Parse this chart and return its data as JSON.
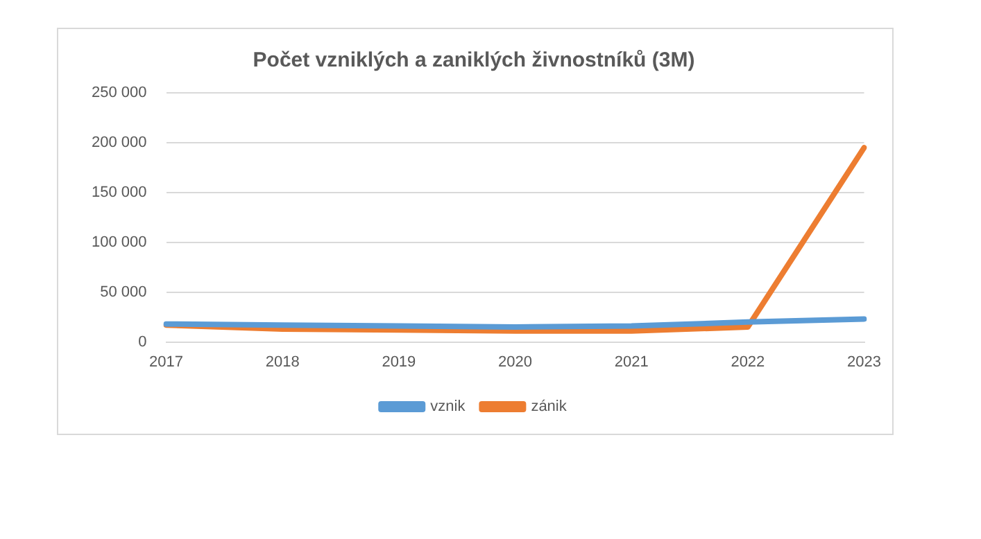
{
  "chart_data": {
    "type": "line",
    "title": "Počet vzniklých a zaniklých živnostníků (3M)",
    "categories": [
      "2017",
      "2018",
      "2019",
      "2020",
      "2021",
      "2022",
      "2023"
    ],
    "series": [
      {
        "name": "vznik",
        "color": "#5b9bd5",
        "values": [
          18000,
          17000,
          16000,
          15000,
          16000,
          20000,
          23000
        ]
      },
      {
        "name": "zánik",
        "color": "#ed7d31",
        "values": [
          17000,
          13000,
          12000,
          11000,
          11000,
          15000,
          195000
        ]
      }
    ],
    "ylim": [
      0,
      250000
    ],
    "yticks": [
      {
        "value": 0,
        "label": "0"
      },
      {
        "value": 50000,
        "label": "50 000"
      },
      {
        "value": 100000,
        "label": "100 000"
      },
      {
        "value": 150000,
        "label": "150 000"
      },
      {
        "value": 200000,
        "label": "200 000"
      },
      {
        "value": 250000,
        "label": "250 000"
      }
    ],
    "grid": "y",
    "legend": "bottom",
    "marker": "none",
    "line_style": "solid"
  }
}
